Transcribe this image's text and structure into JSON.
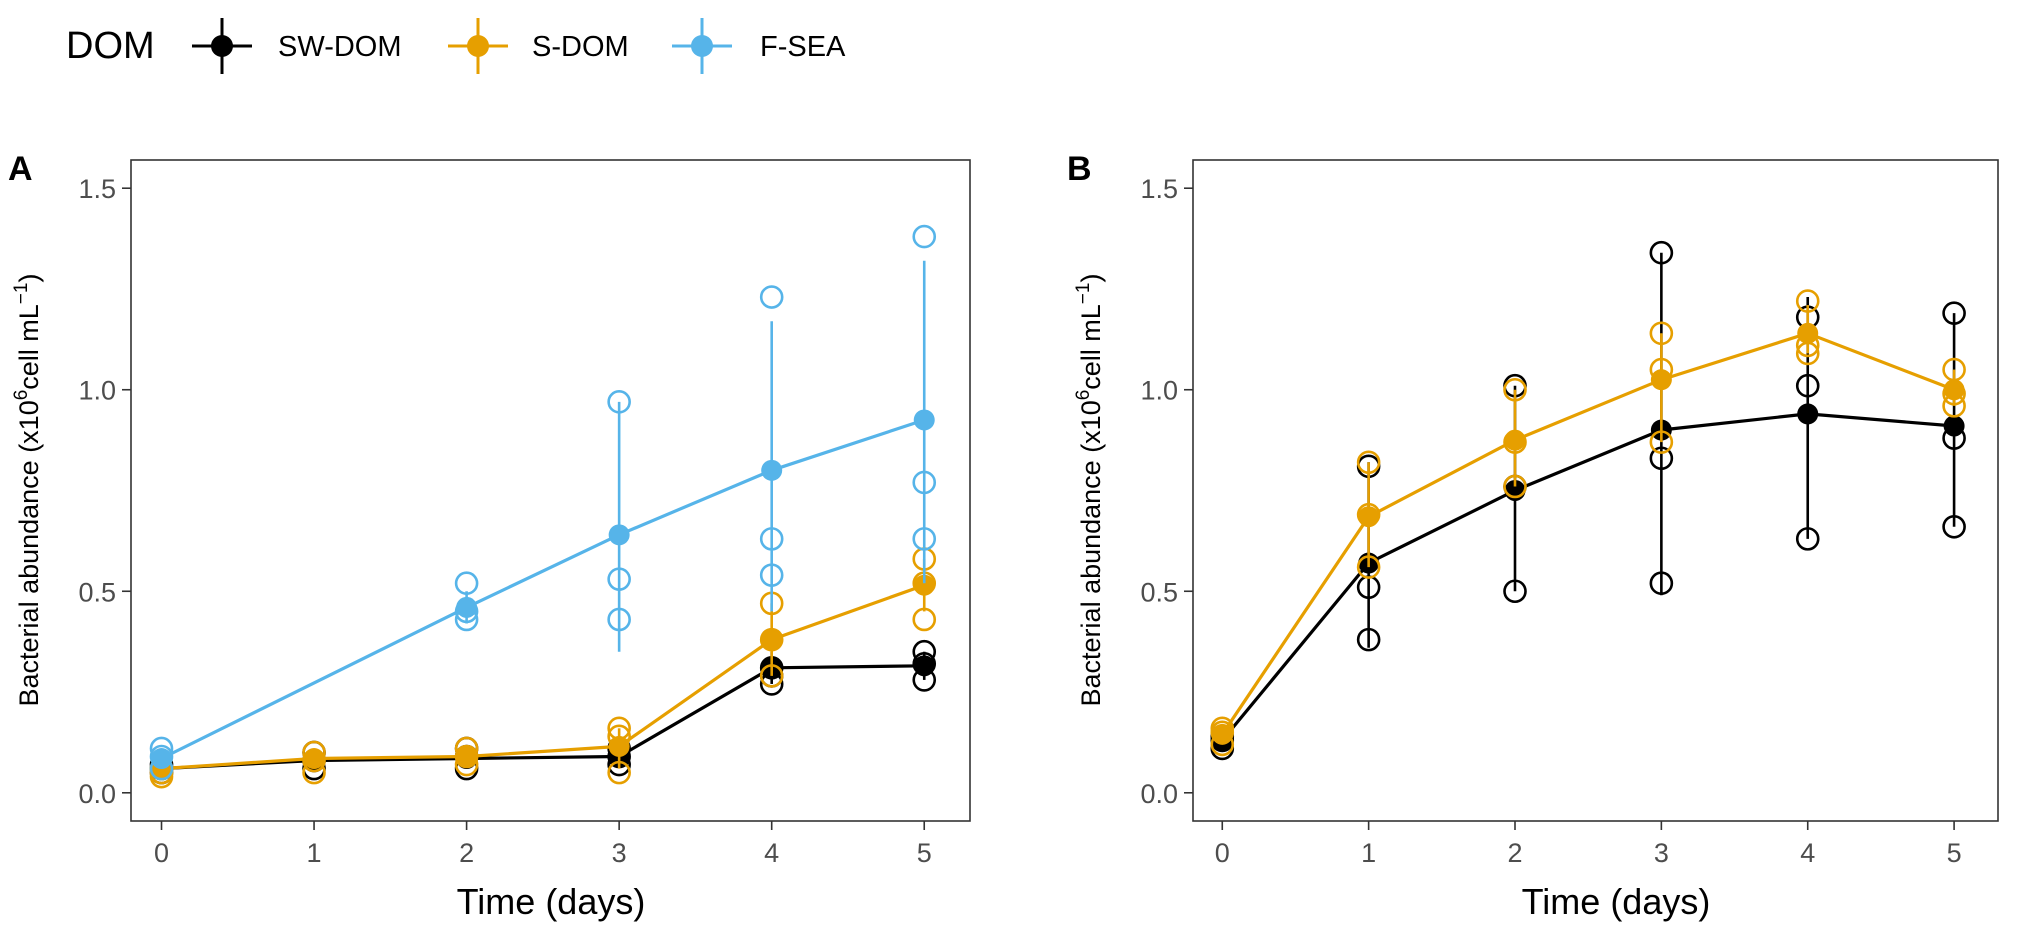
{
  "legend": {
    "title": "DOM",
    "entries": [
      {
        "name": "SW-DOM",
        "color": "#000000"
      },
      {
        "name": "S-DOM",
        "color": "#E69F00"
      },
      {
        "name": "F-SEA",
        "color": "#56B4E9"
      }
    ]
  },
  "chart_data": [
    {
      "panel": "A",
      "type": "line",
      "xlabel": "Time (days)",
      "ylabel_main": "Bacterial abundance (x10",
      "ylabel_sup1": "6",
      "ylabel_mid": "cell mL",
      "ylabel_sup2": "−1",
      "ylabel_end": ")",
      "xlim": [
        -0.2,
        5.3
      ],
      "ylim": [
        -0.07,
        1.57
      ],
      "xticks": [
        0,
        1,
        2,
        3,
        4,
        5
      ],
      "xtick_labels": [
        "0",
        "1",
        "2",
        "3",
        "4",
        "5"
      ],
      "yticks": [
        0.0,
        0.5,
        1.0,
        1.5
      ],
      "ytick_labels": [
        "0.0",
        "0.5",
        "1.0",
        "1.5"
      ],
      "series": [
        {
          "name": "SW-DOM",
          "color": "#000000",
          "x": [
            0,
            1,
            2,
            3,
            4,
            5
          ],
          "mean": [
            0.06,
            0.08,
            0.085,
            0.09,
            0.31,
            0.315
          ],
          "err_low": [
            0.05,
            0.06,
            0.06,
            0.07,
            0.27,
            0.28
          ],
          "err_high": [
            0.07,
            0.1,
            0.11,
            0.11,
            0.35,
            0.35
          ],
          "replicates": [
            [
              0.05,
              0.06,
              0.07
            ],
            [
              0.06,
              0.08,
              0.1
            ],
            [
              0.06,
              0.09,
              0.11
            ],
            [
              0.07,
              0.09,
              0.11
            ],
            [
              0.27,
              0.29,
              0.31
            ],
            [
              0.28,
              0.32,
              0.35
            ]
          ]
        },
        {
          "name": "S-DOM",
          "color": "#E69F00",
          "x": [
            0,
            1,
            2,
            3,
            4,
            5
          ],
          "mean": [
            0.06,
            0.085,
            0.09,
            0.115,
            0.38,
            0.515
          ],
          "err_low": [
            0.04,
            0.06,
            0.07,
            0.06,
            0.29,
            0.45
          ],
          "err_high": [
            0.07,
            0.1,
            0.11,
            0.16,
            0.47,
            0.58
          ],
          "replicates": [
            [
              0.04,
              0.05,
              0.06
            ],
            [
              0.05,
              0.08,
              0.1
            ],
            [
              0.07,
              0.09,
              0.11
            ],
            [
              0.05,
              0.14,
              0.16
            ],
            [
              0.29,
              0.38,
              0.47
            ],
            [
              0.43,
              0.52,
              0.58
            ]
          ]
        },
        {
          "name": "F-SEA",
          "color": "#56B4E9",
          "x": [
            0,
            1,
            2,
            3,
            4,
            5
          ],
          "mean": [
            0.085,
            null,
            0.46,
            0.64,
            0.8,
            0.925
          ],
          "err_low": [
            0.06,
            null,
            0.42,
            0.35,
            0.45,
            0.52
          ],
          "err_high": [
            0.11,
            null,
            0.5,
            0.97,
            1.17,
            1.32
          ],
          "replicates": [
            [
              0.06,
              0.09,
              0.11
            ],
            [],
            [
              0.43,
              0.45,
              0.52
            ],
            [
              0.43,
              0.53,
              0.97
            ],
            [
              0.54,
              0.63,
              1.23
            ],
            [
              0.63,
              0.77,
              1.38
            ]
          ]
        }
      ]
    },
    {
      "panel": "B",
      "type": "line",
      "xlabel": "Time (days)",
      "ylabel_main": "Bacterial abundance (x10",
      "ylabel_sup1": "6",
      "ylabel_mid": "cell mL",
      "ylabel_sup2": "−1",
      "ylabel_end": ")",
      "xlim": [
        -0.2,
        5.3
      ],
      "ylim": [
        -0.07,
        1.57
      ],
      "xticks": [
        0,
        1,
        2,
        3,
        4,
        5
      ],
      "xtick_labels": [
        "0",
        "1",
        "2",
        "3",
        "4",
        "5"
      ],
      "yticks": [
        0.0,
        0.5,
        1.0,
        1.5
      ],
      "ytick_labels": [
        "0.0",
        "0.5",
        "1.0",
        "1.5"
      ],
      "series": [
        {
          "name": "SW-DOM",
          "color": "#000000",
          "x": [
            0,
            1,
            2,
            3,
            4,
            5
          ],
          "mean": [
            0.13,
            0.57,
            0.75,
            0.9,
            0.94,
            0.91
          ],
          "err_low": [
            0.11,
            0.36,
            0.5,
            0.49,
            0.63,
            0.66
          ],
          "err_high": [
            0.15,
            0.82,
            1.01,
            1.34,
            1.23,
            1.19
          ],
          "replicates": [
            [
              0.11,
              0.13,
              0.14
            ],
            [
              0.38,
              0.51,
              0.81
            ],
            [
              0.5,
              0.76,
              1.01
            ],
            [
              0.52,
              0.83,
              1.34
            ],
            [
              0.63,
              1.01,
              1.18
            ],
            [
              0.66,
              0.88,
              1.19
            ]
          ]
        },
        {
          "name": "S-DOM",
          "color": "#E69F00",
          "x": [
            0,
            1,
            2,
            3,
            4,
            5
          ],
          "mean": [
            0.145,
            0.685,
            0.875,
            1.025,
            1.14,
            1.0
          ],
          "err_low": [
            0.12,
            0.56,
            0.76,
            0.87,
            1.09,
            0.96
          ],
          "err_high": [
            0.16,
            0.82,
            1.0,
            1.14,
            1.21,
            1.05
          ],
          "replicates": [
            [
              0.12,
              0.15,
              0.16
            ],
            [
              0.56,
              0.69,
              0.82
            ],
            [
              0.76,
              0.87,
              1.0
            ],
            [
              0.87,
              1.05,
              1.14
            ],
            [
              1.09,
              1.11,
              1.22
            ],
            [
              0.96,
              0.99,
              1.05
            ]
          ]
        }
      ]
    }
  ]
}
